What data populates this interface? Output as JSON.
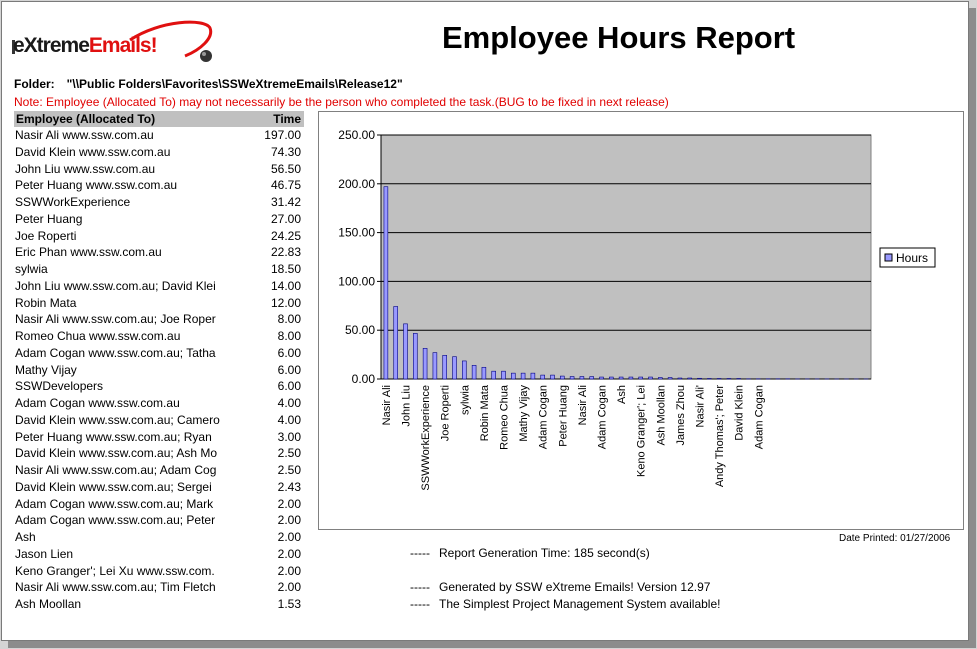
{
  "logo": {
    "prefix": "eXtreme",
    "highlight": "Emails!"
  },
  "report_title": "Employee Hours Report",
  "folder": {
    "label": "Folder:",
    "path": "\"\\\\Public Folders\\Favorites\\SSWeXtremeEmails\\Release12\""
  },
  "note": "Note: Employee (Allocated To) may not necessarily be the person who completed the task.(BUG to be fixed in next release)",
  "table": {
    "headers": {
      "employee": "Employee (Allocated To)",
      "time": "Time"
    },
    "rows": [
      {
        "name": "Nasir Ali www.ssw.com.au",
        "time": "197.00"
      },
      {
        "name": "David Klein www.ssw.com.au",
        "time": "74.30"
      },
      {
        "name": "John Liu www.ssw.com.au",
        "time": "56.50"
      },
      {
        "name": "Peter Huang www.ssw.com.au",
        "time": "46.75"
      },
      {
        "name": "SSWWorkExperience",
        "time": "31.42"
      },
      {
        "name": "Peter Huang",
        "time": "27.00"
      },
      {
        "name": "Joe Roperti",
        "time": "24.25"
      },
      {
        "name": "Eric Phan www.ssw.com.au",
        "time": "22.83"
      },
      {
        "name": "sylwia",
        "time": "18.50"
      },
      {
        "name": "John Liu www.ssw.com.au; David Klei",
        "time": "14.00"
      },
      {
        "name": "Robin Mata",
        "time": "12.00"
      },
      {
        "name": "Nasir Ali www.ssw.com.au; Joe Roper",
        "time": "8.00"
      },
      {
        "name": "Romeo Chua www.ssw.com.au",
        "time": "8.00"
      },
      {
        "name": "Adam Cogan www.ssw.com.au; Tatha",
        "time": "6.00"
      },
      {
        "name": "Mathy Vijay",
        "time": "6.00"
      },
      {
        "name": "SSWDevelopers",
        "time": "6.00"
      },
      {
        "name": "Adam Cogan www.ssw.com.au",
        "time": "4.00"
      },
      {
        "name": "David Klein www.ssw.com.au; Camero",
        "time": "4.00"
      },
      {
        "name": "Peter Huang www.ssw.com.au; Ryan",
        "time": "3.00"
      },
      {
        "name": "David Klein www.ssw.com.au; Ash Mo",
        "time": "2.50"
      },
      {
        "name": "Nasir Ali www.ssw.com.au; Adam Cog",
        "time": "2.50"
      },
      {
        "name": "David Klein www.ssw.com.au; Sergei",
        "time": "2.43"
      },
      {
        "name": "Adam Cogan www.ssw.com.au; Mark",
        "time": "2.00"
      },
      {
        "name": "Adam Cogan www.ssw.com.au; Peter",
        "time": "2.00"
      },
      {
        "name": "Ash",
        "time": "2.00"
      },
      {
        "name": "Jason Lien",
        "time": "2.00"
      },
      {
        "name": "Keno Granger'; Lei Xu www.ssw.com.",
        "time": "2.00"
      },
      {
        "name": "Nasir Ali www.ssw.com.au; Tim Fletch",
        "time": "2.00"
      },
      {
        "name": "Ash Moollan",
        "time": "1.53"
      }
    ]
  },
  "chart_data": {
    "type": "bar",
    "series": [
      {
        "name": "Hours",
        "values": [
          197.0,
          74.3,
          56.5,
          46.75,
          31.42,
          27.0,
          24.25,
          22.83,
          18.5,
          14.0,
          12.0,
          8.0,
          8.0,
          6.0,
          6.0,
          6.0,
          4.0,
          4.0,
          3.0,
          2.5,
          2.5,
          2.43,
          2.0,
          2.0,
          2.0,
          2.0,
          2.0,
          2.0,
          1.53,
          1.5,
          1.0,
          1.0,
          0.75,
          0.5,
          0.5,
          0.5,
          0.5,
          0.25,
          0.25,
          0.25,
          0.25,
          0.25,
          0.1,
          0.1,
          0.1,
          0.1,
          0.05,
          0.05,
          0.05,
          0.05
        ]
      }
    ],
    "x_tick_labels": [
      "Nasir Ali",
      "John Liu",
      "SSWWorkExperience",
      "Joe Roperti",
      "sylwia",
      "Robin Mata",
      "Romeo Chua",
      "Mathy Vijay",
      "Adam Cogan",
      "Peter Huang",
      "Nasir Ali",
      "Adam Cogan",
      "Ash",
      "Keno Granger'; Lei",
      "Ash Moollan",
      "James Zhou",
      "Nasir Ali'",
      "Andy Thomas'; Peter",
      "David Klein",
      "Adam Cogan"
    ],
    "y_ticks": [
      "0.00",
      "50.00",
      "100.00",
      "150.00",
      "200.00",
      "250.00"
    ],
    "ylim": [
      0,
      250
    ],
    "grid": true,
    "legend": "right",
    "colors": {
      "bar": "#9999ff",
      "plot_bg": "#c0c0c0",
      "gridline": "#000000"
    }
  },
  "date_printed": "Date Printed: 01/27/2006",
  "footer": [
    {
      "dash": "-----",
      "text": "Report Generation Time: 185 second(s)"
    },
    {
      "dash": "-----",
      "text": "Generated by SSW eXtreme Emails! Version 12.97"
    },
    {
      "dash": "-----",
      "text": "The Simplest Project Management System available!"
    }
  ]
}
